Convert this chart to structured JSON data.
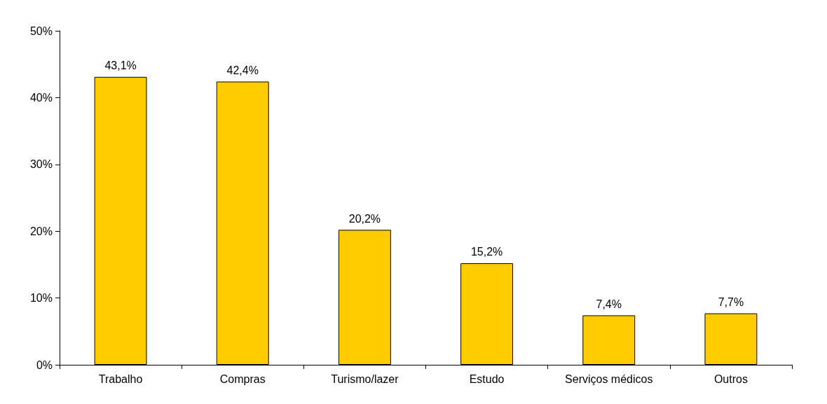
{
  "chart_data": {
    "type": "bar",
    "categories": [
      "Trabalho",
      "Compras",
      "Turismo/lazer",
      "Estudo",
      "Serviços médicos",
      "Outros"
    ],
    "values": [
      43.1,
      42.4,
      20.2,
      15.2,
      7.4,
      7.7
    ],
    "value_labels": [
      "43,1%",
      "42,4%",
      "20,2%",
      "15,2%",
      "7,4%",
      "7,7%"
    ],
    "color": "#ffcc00",
    "ylim": [
      0,
      50
    ],
    "yticks": [
      {
        "value": 0,
        "label": "0%"
      },
      {
        "value": 10,
        "label": "10%"
      },
      {
        "value": 20,
        "label": "20%"
      },
      {
        "value": 30,
        "label": "30%"
      },
      {
        "value": 40,
        "label": "40%"
      },
      {
        "value": 50,
        "label": "50%"
      }
    ],
    "grid": false
  }
}
